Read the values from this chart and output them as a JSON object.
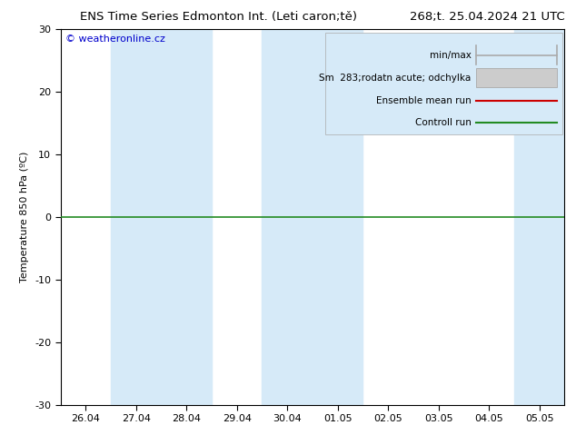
{
  "title_left": "ENS Time Series Edmonton Int. (Leti caron;tě)",
  "title_right": "268;t. 25.04.2024 21 UTC",
  "ylabel": "Temperature 850 hPa (ºC)",
  "ylim": [
    -30,
    30
  ],
  "yticks": [
    -30,
    -20,
    -10,
    0,
    10,
    20,
    30
  ],
  "xtick_labels": [
    "26.04",
    "27.04",
    "28.04",
    "29.04",
    "30.04",
    "01.05",
    "02.05",
    "03.05",
    "04.05",
    "05.05"
  ],
  "watermark": "© weatheronline.cz",
  "bg_color": "#ffffff",
  "plot_bg_color": "#ffffff",
  "band_color": "#d6eaf8",
  "band_positions": [
    1,
    2,
    4,
    5,
    9
  ],
  "control_run_color": "#228b22",
  "ensemble_mean_color": "#cc0000",
  "legend_minmax_color": "#aaaaaa",
  "legend_spread_color": "#cccccc",
  "title_fontsize": 9.5,
  "axis_fontsize": 8,
  "watermark_fontsize": 8,
  "legend_text_fontsize": 7.5
}
